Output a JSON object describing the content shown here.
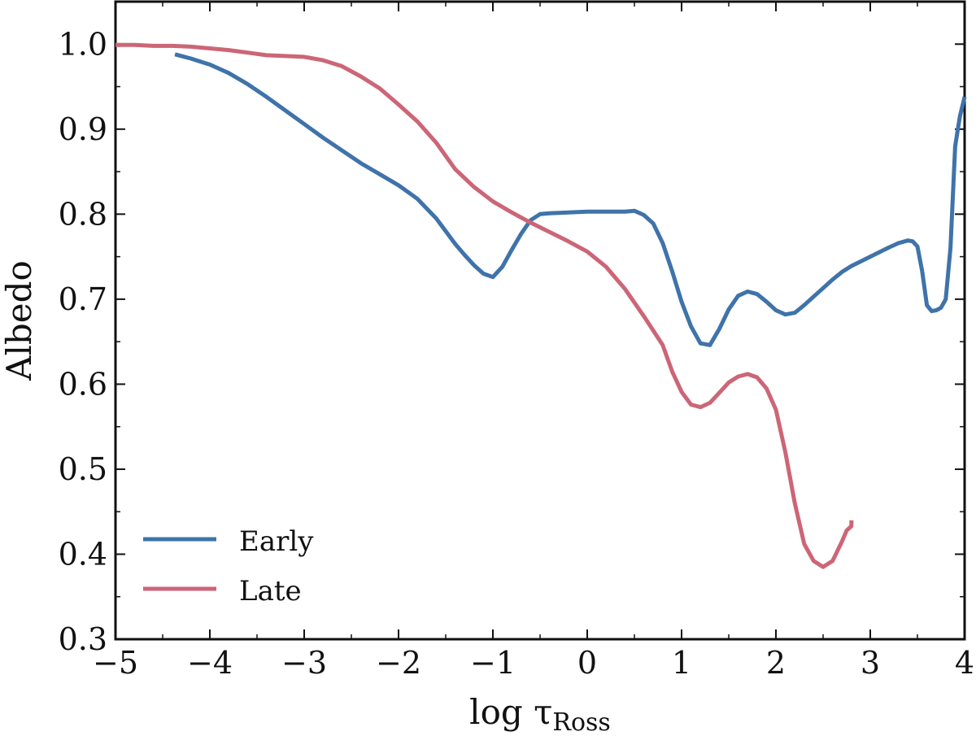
{
  "chart_data": {
    "type": "line",
    "xlabel_main": "log τ",
    "xlabel_sub": "Ross",
    "ylabel": "Albedo",
    "xlim": [
      -5,
      4
    ],
    "ylim": [
      0.3,
      1.05
    ],
    "xticks": [
      -5,
      -4,
      -3,
      -2,
      -1,
      0,
      1,
      2,
      3,
      4
    ],
    "xtick_labels": [
      "−5",
      "−4",
      "−3",
      "−2",
      "−1",
      "0",
      "1",
      "2",
      "3",
      "4"
    ],
    "yticks": [
      0.3,
      0.4,
      0.5,
      0.6,
      0.7,
      0.8,
      0.9,
      1.0
    ],
    "ytick_labels": [
      "0.3",
      "0.4",
      "0.5",
      "0.6",
      "0.7",
      "0.8",
      "0.9",
      "1.0"
    ],
    "grid": false,
    "legend_position": "lower-left",
    "series": [
      {
        "name": "Early",
        "color": "#3f73aa",
        "x": [
          -4.37,
          -4.2,
          -4.0,
          -3.8,
          -3.6,
          -3.4,
          -3.2,
          -3.0,
          -2.8,
          -2.6,
          -2.4,
          -2.2,
          -2.0,
          -1.8,
          -1.6,
          -1.4,
          -1.3,
          -1.2,
          -1.1,
          -1.0,
          -0.9,
          -0.8,
          -0.7,
          -0.6,
          -0.5,
          -0.4,
          -0.2,
          0.0,
          0.2,
          0.4,
          0.5,
          0.6,
          0.7,
          0.8,
          0.9,
          1.0,
          1.1,
          1.2,
          1.3,
          1.4,
          1.5,
          1.6,
          1.7,
          1.8,
          1.9,
          2.0,
          2.1,
          2.2,
          2.3,
          2.4,
          2.5,
          2.6,
          2.7,
          2.8,
          3.0,
          3.2,
          3.3,
          3.4,
          3.45,
          3.5,
          3.55,
          3.6,
          3.65,
          3.7,
          3.75,
          3.8,
          3.85,
          3.9,
          3.95,
          4.0
        ],
        "y": [
          0.988,
          0.983,
          0.976,
          0.966,
          0.953,
          0.938,
          0.922,
          0.906,
          0.89,
          0.875,
          0.86,
          0.847,
          0.834,
          0.818,
          0.795,
          0.765,
          0.752,
          0.74,
          0.73,
          0.726,
          0.738,
          0.758,
          0.777,
          0.793,
          0.8,
          0.801,
          0.802,
          0.803,
          0.803,
          0.803,
          0.804,
          0.799,
          0.789,
          0.766,
          0.733,
          0.697,
          0.668,
          0.648,
          0.646,
          0.665,
          0.688,
          0.704,
          0.709,
          0.706,
          0.697,
          0.687,
          0.682,
          0.684,
          0.693,
          0.703,
          0.713,
          0.723,
          0.732,
          0.739,
          0.75,
          0.761,
          0.766,
          0.769,
          0.768,
          0.762,
          0.733,
          0.693,
          0.686,
          0.687,
          0.69,
          0.7,
          0.76,
          0.88,
          0.915,
          0.938
        ]
      },
      {
        "name": "Late",
        "color": "#cc6677",
        "x": [
          -5.0,
          -4.8,
          -4.6,
          -4.4,
          -4.2,
          -4.0,
          -3.8,
          -3.6,
          -3.4,
          -3.2,
          -3.0,
          -2.8,
          -2.6,
          -2.4,
          -2.2,
          -2.0,
          -1.8,
          -1.6,
          -1.4,
          -1.2,
          -1.0,
          -0.8,
          -0.6,
          -0.4,
          -0.2,
          0.0,
          0.2,
          0.4,
          0.6,
          0.8,
          0.9,
          1.0,
          1.1,
          1.2,
          1.3,
          1.4,
          1.5,
          1.6,
          1.7,
          1.8,
          1.9,
          2.0,
          2.1,
          2.2,
          2.3,
          2.4,
          2.5,
          2.6,
          2.7,
          2.75,
          2.8,
          2.8
        ],
        "y": [
          0.999,
          0.999,
          0.998,
          0.998,
          0.997,
          0.995,
          0.993,
          0.99,
          0.987,
          0.986,
          0.985,
          0.981,
          0.974,
          0.962,
          0.948,
          0.929,
          0.909,
          0.884,
          0.853,
          0.832,
          0.815,
          0.802,
          0.79,
          0.779,
          0.768,
          0.756,
          0.738,
          0.712,
          0.68,
          0.646,
          0.615,
          0.591,
          0.576,
          0.573,
          0.578,
          0.59,
          0.602,
          0.609,
          0.612,
          0.608,
          0.595,
          0.57,
          0.52,
          0.46,
          0.412,
          0.392,
          0.385,
          0.392,
          0.415,
          0.428,
          0.433,
          0.44
        ]
      }
    ]
  }
}
